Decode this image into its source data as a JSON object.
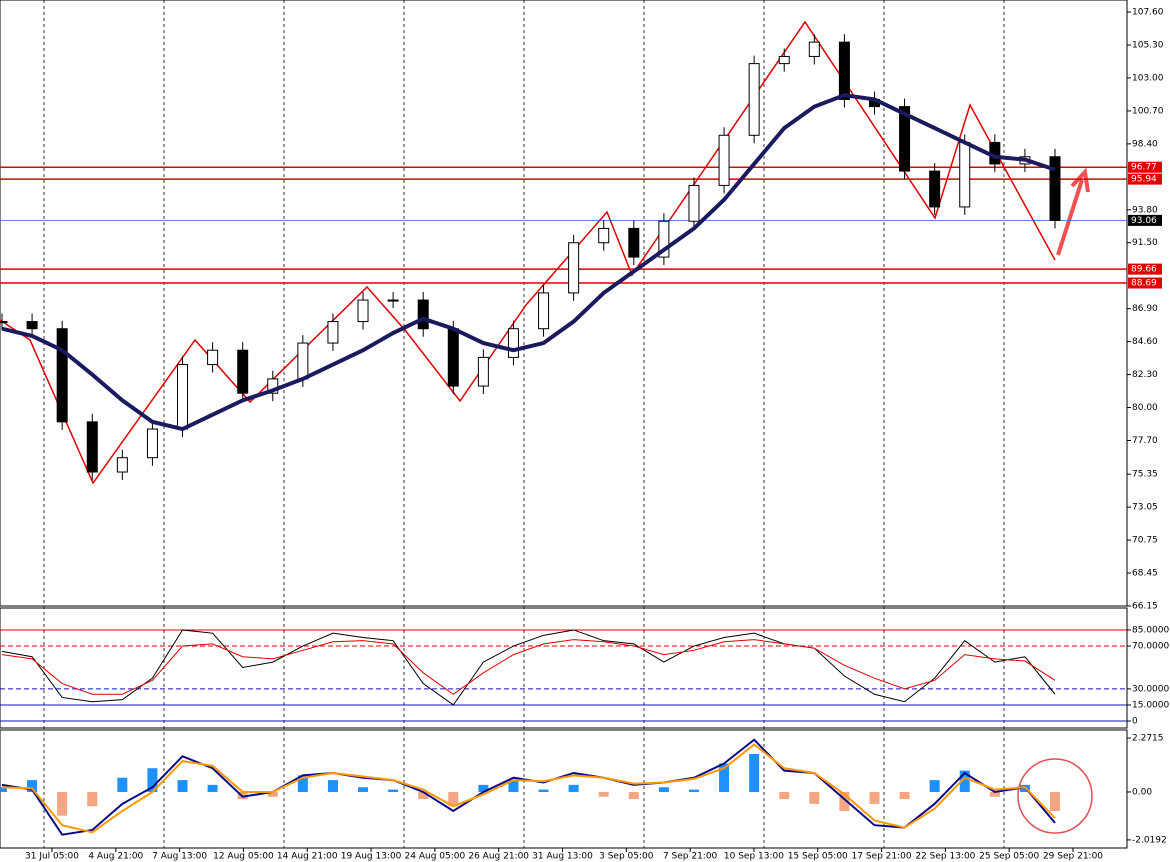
{
  "chart_data": [
    {
      "type": "candlestick",
      "values": [
        86,
        85.5,
        79,
        75.5,
        76.5,
        78.5,
        83,
        84,
        81,
        82,
        84.5,
        86,
        87.5,
        87.5,
        85.5,
        81.5,
        83.5,
        85.5,
        88,
        91.5,
        92.5,
        90.5,
        93,
        95.5,
        99,
        104,
        104.5,
        105.5,
        101.5,
        101,
        96.5,
        94,
        98.5,
        97,
        97.5,
        93.06
      ],
      "color": "#000000",
      "series": [
        {
          "color": "#1a1a5e",
          "values": [
            85.5,
            85,
            84,
            82.3,
            80.5,
            79,
            78.5,
            79.5,
            80.5,
            81.2,
            82,
            83,
            84,
            85.2,
            86.2,
            85.5,
            84.5,
            84,
            84.5,
            86,
            88,
            89.5,
            91,
            92.5,
            94.5,
            97,
            99.5,
            101,
            101.8,
            101.5,
            100.5,
            99.5,
            98.5,
            97.5,
            97.3,
            96.6
          ]
        }
      ],
      "ylim": [
        66.15,
        108.44
      ],
      "yticks": [
        {
          "value": 107.6,
          "label": "107.60"
        },
        {
          "value": 105.3,
          "label": "105.30"
        },
        {
          "value": 103,
          "label": "103.00"
        },
        {
          "value": 100.7,
          "label": "100.70"
        },
        {
          "value": 98.4,
          "label": "98.40"
        },
        {
          "value": 93.8,
          "label": "93.80"
        },
        {
          "value": 91.5,
          "label": "91.50"
        },
        {
          "value": 86.9,
          "label": "86.90"
        },
        {
          "value": 84.6,
          "label": "84.60"
        },
        {
          "value": 82.3,
          "label": "82.30"
        },
        {
          "value": 80,
          "label": "80.00"
        },
        {
          "value": 77.7,
          "label": "77.70"
        },
        {
          "value": 75.35,
          "label": "75.35"
        },
        {
          "value": 73.05,
          "label": "73.05"
        },
        {
          "value": 70.75,
          "label": "70.75"
        },
        {
          "value": 68.45,
          "label": "68.45"
        },
        {
          "value": 66.15,
          "label": "66.15"
        }
      ],
      "levels": [
        {
          "value": 96.77,
          "label": "96.77",
          "color": "#e00000"
        },
        {
          "value": 95.94,
          "label": "95.94",
          "color": "#e00000"
        },
        {
          "value": 93.06,
          "label": "93.06",
          "color": "#3060d0"
        },
        {
          "value": 89.66,
          "label": "89.66",
          "color": "#e00000"
        },
        {
          "value": 88.69,
          "label": "88.69",
          "color": "#e00000"
        }
      ]
    },
    {
      "type": "line",
      "series": [
        {
          "color": "#000000",
          "values": [
            65,
            60,
            22,
            18,
            20,
            40,
            85,
            82,
            50,
            55,
            70,
            82,
            78,
            75,
            35,
            15,
            55,
            70,
            80,
            85,
            75,
            72,
            55,
            70,
            78,
            82,
            72,
            68,
            42,
            25,
            18,
            40,
            75,
            55,
            60,
            25
          ]
        },
        {
          "color": "#e00000",
          "values": [
            62,
            58,
            35,
            25,
            25,
            38,
            70,
            72,
            60,
            58,
            66,
            74,
            75,
            72,
            45,
            25,
            45,
            62,
            72,
            76,
            74,
            70,
            62,
            66,
            74,
            76,
            72,
            68,
            52,
            40,
            30,
            38,
            62,
            58,
            56,
            38
          ]
        }
      ],
      "ylim": [
        -6.5,
        105.5
      ],
      "yticks": [
        {
          "value": 85,
          "label": "85.0000"
        },
        {
          "value": 70,
          "label": "70.0000"
        },
        {
          "value": 30,
          "label": "30.0000"
        },
        {
          "value": 15,
          "label": "15.0000"
        },
        0
      ]
    },
    {
      "type": "bar",
      "values": [
        0.2,
        0.5,
        -1.0,
        -0.6,
        0.6,
        1.0,
        0.5,
        0.3,
        -0.3,
        -0.2,
        0.7,
        0.5,
        0.2,
        0.1,
        -0.3,
        -0.6,
        0.3,
        0.5,
        0.1,
        0.3,
        -0.2,
        -0.3,
        0.2,
        0.1,
        1.2,
        1.6,
        -0.3,
        -0.5,
        -0.8,
        -0.5,
        -0.3,
        0.5,
        0.9,
        -0.2,
        0.3,
        -0.8
      ],
      "colors": [
        "#1e90ff",
        "#f4a582"
      ],
      "series": [
        {
          "color": "#0a0a8a",
          "values": [
            0.3,
            0.1,
            -1.8,
            -1.6,
            -0.5,
            0.2,
            1.5,
            1.0,
            -0.2,
            0.0,
            0.7,
            0.8,
            0.6,
            0.5,
            0.0,
            -0.8,
            0.0,
            0.6,
            0.4,
            0.8,
            0.6,
            0.3,
            0.4,
            0.6,
            1.2,
            2.2,
            0.9,
            0.8,
            -0.3,
            -1.4,
            -1.5,
            -0.5,
            0.8,
            0.0,
            0.2,
            -1.3
          ]
        },
        {
          "color": "#ff9900",
          "values": [
            0.2,
            0.15,
            -1.4,
            -1.7,
            -0.8,
            0.0,
            1.3,
            1.1,
            0.0,
            0.0,
            0.6,
            0.8,
            0.65,
            0.5,
            0.1,
            -0.6,
            -0.1,
            0.5,
            0.45,
            0.7,
            0.6,
            0.35,
            0.4,
            0.55,
            1.0,
            2.0,
            1.0,
            0.8,
            -0.1,
            -1.2,
            -1.5,
            -0.7,
            0.6,
            0.1,
            0.2,
            -1.1
          ]
        }
      ],
      "ylim": [
        -2.36,
        2.61
      ],
      "yticks": [
        {
          "value": 2.2715,
          "label": "2.2715"
        },
        {
          "value": 0,
          "label": "0.00"
        },
        {
          "value": -2.0192,
          "label": "-2.0192"
        }
      ],
      "x_labels": [
        "31 Jul 05:00",
        "4 Aug 21:00",
        "7 Aug 13:00",
        "12 Aug 05:00",
        "14 Aug 21:00",
        "19 Aug 13:00",
        "24 Aug 05:00",
        "26 Aug 21:00",
        "31 Aug 13:00",
        "3 Sep 05:00",
        "7 Sep 21:00",
        "10 Sep 13:00",
        "15 Sep 05:00",
        "17 Sep 21:00",
        "22 Sep 13:00",
        "25 Sep 05:00",
        "29 Sep 21:00"
      ]
    }
  ]
}
